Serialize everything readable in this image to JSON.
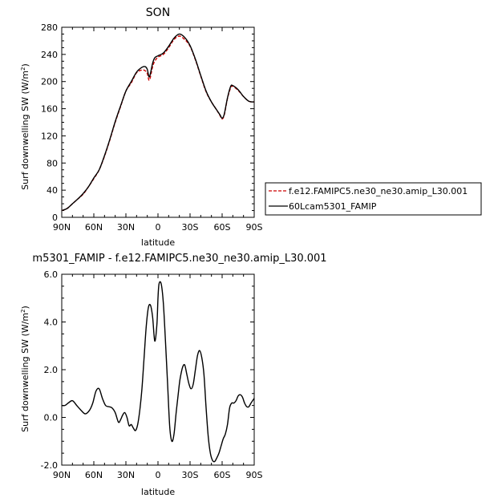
{
  "chart_data": [
    {
      "type": "line",
      "title": "SON",
      "xlabel": "latitude",
      "ylabel": "Surf downwelling SW",
      "yunits": "(W/m",
      "yunits_sup": "2",
      "yunits_close": ")",
      "xlim": [
        90,
        -90
      ],
      "ylim": [
        0,
        280
      ],
      "xticks": [
        90,
        60,
        30,
        0,
        -30,
        -60,
        -90
      ],
      "xticklabels": [
        "90N",
        "60N",
        "30N",
        "0",
        "30S",
        "60S",
        "90S"
      ],
      "yticks": [
        0,
        40,
        80,
        120,
        160,
        200,
        240,
        280
      ],
      "yticklabels": [
        "0",
        "40",
        "80",
        "120",
        "160",
        "200",
        "240",
        "280"
      ],
      "legend_position": "right",
      "series": [
        {
          "name": "f.e12.FAMIPC5.ne30_ne30.amip_L30.001",
          "color": "#cc0000",
          "dash": "dashed",
          "x": [
            90,
            85,
            80,
            75,
            70,
            65,
            60,
            55,
            50,
            45,
            40,
            35,
            30,
            25,
            20,
            15,
            12,
            10,
            8,
            5,
            3,
            0,
            -5,
            -10,
            -15,
            -20,
            -25,
            -30,
            -35,
            -40,
            -45,
            -50,
            -55,
            -58,
            -60,
            -62,
            -65,
            -68,
            -70,
            -75,
            -80,
            -85,
            -90
          ],
          "y": [
            10,
            13,
            20,
            27,
            34,
            45,
            57,
            70,
            90,
            114,
            140,
            163,
            186,
            198,
            213,
            217,
            216,
            212,
            202,
            222,
            230,
            236,
            240,
            250,
            262,
            267,
            262,
            252,
            232,
            208,
            185,
            170,
            158,
            150,
            145,
            151,
            175,
            191,
            193,
            187,
            178,
            171,
            170
          ]
        },
        {
          "name": "60Lcam5301_FAMIP",
          "color": "#000000",
          "dash": "solid",
          "x": [
            90,
            85,
            80,
            75,
            70,
            65,
            60,
            55,
            50,
            45,
            40,
            35,
            30,
            25,
            20,
            15,
            12,
            10,
            8,
            5,
            3,
            0,
            -5,
            -10,
            -15,
            -20,
            -25,
            -30,
            -35,
            -40,
            -45,
            -50,
            -55,
            -58,
            -60,
            -62,
            -65,
            -68,
            -70,
            -75,
            -80,
            -85,
            -90
          ],
          "y": [
            10,
            13,
            20,
            27,
            35,
            45,
            58,
            70,
            91,
            115,
            141,
            164,
            186,
            200,
            214,
            221,
            222,
            218,
            207,
            227,
            235,
            238,
            242,
            252,
            264,
            270,
            265,
            253,
            233,
            209,
            186,
            170,
            158,
            151,
            146,
            152,
            176,
            193,
            194,
            188,
            178,
            171,
            170
          ]
        }
      ]
    },
    {
      "type": "line",
      "title": "m5301_FAMIP - f.e12.FAMIPC5.ne30_ne30.amip_L30.001",
      "xlabel": "latitude",
      "ylabel": "Surf downwelling SW",
      "yunits": "(W/m",
      "yunits_sup": "2",
      "yunits_close": ")",
      "xlim": [
        90,
        -90
      ],
      "ylim": [
        -2.0,
        6.0
      ],
      "xticks": [
        90,
        60,
        30,
        0,
        -30,
        -60,
        -90
      ],
      "xticklabels": [
        "90N",
        "60N",
        "30N",
        "0",
        "30S",
        "60S",
        "90S"
      ],
      "yticks": [
        -2,
        0,
        2,
        4,
        6
      ],
      "yticklabels": [
        "-2.0",
        "0.0",
        "2.0",
        "4.0",
        "6.0"
      ],
      "series": [
        {
          "color": "#000000",
          "dash": "solid",
          "x": [
            90,
            87,
            84,
            80,
            76,
            72,
            68,
            64,
            61,
            58,
            55,
            52,
            49,
            46,
            43,
            40,
            37,
            35,
            33,
            31,
            29,
            27,
            25,
            23,
            21,
            19,
            17,
            15,
            13,
            11,
            9,
            7,
            5,
            3,
            1,
            0,
            -1,
            -3,
            -5,
            -7,
            -9,
            -11,
            -13,
            -15,
            -17,
            -19,
            -20,
            -21,
            -23,
            -25,
            -27,
            -29,
            -31,
            -33,
            -35,
            -37,
            -39,
            -41,
            -43,
            -45,
            -47,
            -49,
            -51,
            -53,
            -55,
            -57,
            -59,
            -61,
            -63,
            -65,
            -67,
            -69,
            -71,
            -73,
            -75,
            -77,
            -79,
            -81,
            -83,
            -85,
            -87,
            -90
          ],
          "y": [
            0.5,
            0.5,
            0.6,
            0.7,
            0.5,
            0.3,
            0.15,
            0.3,
            0.6,
            1.1,
            1.2,
            0.8,
            0.5,
            0.45,
            0.4,
            0.2,
            -0.2,
            -0.1,
            0.1,
            0.2,
            0.0,
            -0.35,
            -0.3,
            -0.45,
            -0.55,
            -0.3,
            0.3,
            1.2,
            2.5,
            3.8,
            4.6,
            4.7,
            4.2,
            3.2,
            3.9,
            5.0,
            5.6,
            5.6,
            4.8,
            3.2,
            1.4,
            -0.4,
            -1.0,
            -0.7,
            0.2,
            1.0,
            1.4,
            1.7,
            2.1,
            2.2,
            1.8,
            1.4,
            1.2,
            1.4,
            2.0,
            2.6,
            2.8,
            2.5,
            1.8,
            0.4,
            -0.8,
            -1.5,
            -1.8,
            -1.85,
            -1.7,
            -1.5,
            -1.2,
            -0.9,
            -0.7,
            -0.3,
            0.4,
            0.6,
            0.6,
            0.7,
            0.9,
            0.95,
            0.85,
            0.6,
            0.45,
            0.45,
            0.6,
            0.8
          ]
        }
      ]
    }
  ]
}
